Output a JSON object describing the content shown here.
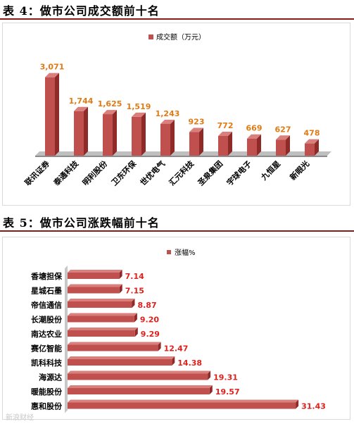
{
  "sections": [
    {
      "title": "表 4：做市公司成交额前十名"
    },
    {
      "title": "表 5：做市公司涨跌幅前十名"
    }
  ],
  "colors": {
    "bar": "#C0504D",
    "bar_dark": "#8E2A27",
    "value1": "#E07B14",
    "value2": "#E0201C",
    "rule": "#8B1A1A"
  },
  "watermark": "新浪财经",
  "chart_data": [
    {
      "type": "bar",
      "orientation": "vertical",
      "legend": "成交额（万元）",
      "legend_position": "top",
      "categories": [
        "联讯证券",
        "泰通科技",
        "明利股份",
        "卫东环保",
        "世优电气",
        "汇元科技",
        "圣泉集团",
        "宇球电子",
        "九恒星",
        "新眼光"
      ],
      "values": [
        3071,
        1744,
        1625,
        1519,
        1243,
        923,
        772,
        669,
        627,
        478
      ],
      "value_labels": [
        "3,071",
        "1,744",
        "1,625",
        "1,519",
        "1,243",
        "923",
        "772",
        "669",
        "627",
        "478"
      ],
      "ylim": [
        0,
        3200
      ],
      "grid": false
    },
    {
      "type": "bar",
      "orientation": "horizontal",
      "legend": "涨幅%",
      "legend_position": "top",
      "categories": [
        "香塘担保",
        "星城石墨",
        "帝信通信",
        "长潮股份",
        "南达农业",
        "赛亿智能",
        "凯科科技",
        "海源达",
        "暖能股份",
        "惠和股份"
      ],
      "values": [
        7.14,
        7.15,
        8.87,
        9.2,
        9.29,
        12.47,
        14.38,
        19.31,
        19.57,
        31.43
      ],
      "value_labels": [
        "7.14",
        "7.15",
        "8.87",
        "9.20",
        "9.29",
        "12.47",
        "14.38",
        "19.31",
        "19.57",
        "31.43"
      ],
      "xlim": [
        0,
        32
      ],
      "grid": false
    }
  ]
}
